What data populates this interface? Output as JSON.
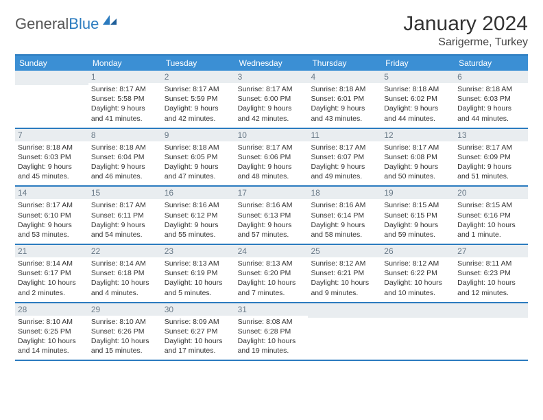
{
  "brand": {
    "part1": "General",
    "part2": "Blue"
  },
  "title": "January 2024",
  "location": "Sarigerme, Turkey",
  "colors": {
    "header_bg": "#3b8fd4",
    "border": "#2b7bbf",
    "date_bg": "#e9edf0",
    "date_fg": "#6a7a88",
    "text": "#333333"
  },
  "weekdays": [
    "Sunday",
    "Monday",
    "Tuesday",
    "Wednesday",
    "Thursday",
    "Friday",
    "Saturday"
  ],
  "weeks": [
    [
      null,
      {
        "d": "1",
        "sr": "8:17 AM",
        "ss": "5:58 PM",
        "dl": "9 hours and 41 minutes."
      },
      {
        "d": "2",
        "sr": "8:17 AM",
        "ss": "5:59 PM",
        "dl": "9 hours and 42 minutes."
      },
      {
        "d": "3",
        "sr": "8:17 AM",
        "ss": "6:00 PM",
        "dl": "9 hours and 42 minutes."
      },
      {
        "d": "4",
        "sr": "8:18 AM",
        "ss": "6:01 PM",
        "dl": "9 hours and 43 minutes."
      },
      {
        "d": "5",
        "sr": "8:18 AM",
        "ss": "6:02 PM",
        "dl": "9 hours and 44 minutes."
      },
      {
        "d": "6",
        "sr": "8:18 AM",
        "ss": "6:03 PM",
        "dl": "9 hours and 44 minutes."
      }
    ],
    [
      {
        "d": "7",
        "sr": "8:18 AM",
        "ss": "6:03 PM",
        "dl": "9 hours and 45 minutes."
      },
      {
        "d": "8",
        "sr": "8:18 AM",
        "ss": "6:04 PM",
        "dl": "9 hours and 46 minutes."
      },
      {
        "d": "9",
        "sr": "8:18 AM",
        "ss": "6:05 PM",
        "dl": "9 hours and 47 minutes."
      },
      {
        "d": "10",
        "sr": "8:17 AM",
        "ss": "6:06 PM",
        "dl": "9 hours and 48 minutes."
      },
      {
        "d": "11",
        "sr": "8:17 AM",
        "ss": "6:07 PM",
        "dl": "9 hours and 49 minutes."
      },
      {
        "d": "12",
        "sr": "8:17 AM",
        "ss": "6:08 PM",
        "dl": "9 hours and 50 minutes."
      },
      {
        "d": "13",
        "sr": "8:17 AM",
        "ss": "6:09 PM",
        "dl": "9 hours and 51 minutes."
      }
    ],
    [
      {
        "d": "14",
        "sr": "8:17 AM",
        "ss": "6:10 PM",
        "dl": "9 hours and 53 minutes."
      },
      {
        "d": "15",
        "sr": "8:17 AM",
        "ss": "6:11 PM",
        "dl": "9 hours and 54 minutes."
      },
      {
        "d": "16",
        "sr": "8:16 AM",
        "ss": "6:12 PM",
        "dl": "9 hours and 55 minutes."
      },
      {
        "d": "17",
        "sr": "8:16 AM",
        "ss": "6:13 PM",
        "dl": "9 hours and 57 minutes."
      },
      {
        "d": "18",
        "sr": "8:16 AM",
        "ss": "6:14 PM",
        "dl": "9 hours and 58 minutes."
      },
      {
        "d": "19",
        "sr": "8:15 AM",
        "ss": "6:15 PM",
        "dl": "9 hours and 59 minutes."
      },
      {
        "d": "20",
        "sr": "8:15 AM",
        "ss": "6:16 PM",
        "dl": "10 hours and 1 minute."
      }
    ],
    [
      {
        "d": "21",
        "sr": "8:14 AM",
        "ss": "6:17 PM",
        "dl": "10 hours and 2 minutes."
      },
      {
        "d": "22",
        "sr": "8:14 AM",
        "ss": "6:18 PM",
        "dl": "10 hours and 4 minutes."
      },
      {
        "d": "23",
        "sr": "8:13 AM",
        "ss": "6:19 PM",
        "dl": "10 hours and 5 minutes."
      },
      {
        "d": "24",
        "sr": "8:13 AM",
        "ss": "6:20 PM",
        "dl": "10 hours and 7 minutes."
      },
      {
        "d": "25",
        "sr": "8:12 AM",
        "ss": "6:21 PM",
        "dl": "10 hours and 9 minutes."
      },
      {
        "d": "26",
        "sr": "8:12 AM",
        "ss": "6:22 PM",
        "dl": "10 hours and 10 minutes."
      },
      {
        "d": "27",
        "sr": "8:11 AM",
        "ss": "6:23 PM",
        "dl": "10 hours and 12 minutes."
      }
    ],
    [
      {
        "d": "28",
        "sr": "8:10 AM",
        "ss": "6:25 PM",
        "dl": "10 hours and 14 minutes."
      },
      {
        "d": "29",
        "sr": "8:10 AM",
        "ss": "6:26 PM",
        "dl": "10 hours and 15 minutes."
      },
      {
        "d": "30",
        "sr": "8:09 AM",
        "ss": "6:27 PM",
        "dl": "10 hours and 17 minutes."
      },
      {
        "d": "31",
        "sr": "8:08 AM",
        "ss": "6:28 PM",
        "dl": "10 hours and 19 minutes."
      },
      null,
      null,
      null
    ]
  ],
  "labels": {
    "sunrise": "Sunrise:",
    "sunset": "Sunset:",
    "daylight": "Daylight:"
  }
}
